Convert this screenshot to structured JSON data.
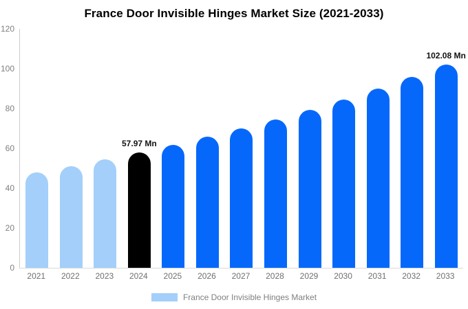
{
  "chart_data": {
    "type": "bar",
    "title": "France Door Invisible Hinges Market Size (2021-2033)",
    "categories": [
      "2021",
      "2022",
      "2023",
      "2024",
      "2025",
      "2026",
      "2027",
      "2028",
      "2029",
      "2030",
      "2031",
      "2032",
      "2033"
    ],
    "values": [
      48.0,
      51.1,
      54.4,
      57.97,
      61.7,
      65.7,
      70.0,
      74.5,
      79.4,
      84.5,
      90.0,
      95.9,
      102.08
    ],
    "unit": "Mn",
    "xlabel": "",
    "ylabel": "",
    "ylim": [
      0,
      120
    ],
    "yticks": [
      0,
      20,
      40,
      60,
      80,
      100,
      120
    ],
    "grid": "off",
    "bar_colors": [
      "#A3CFFA",
      "#A3CFFA",
      "#A3CFFA",
      "#000000",
      "#0668FB",
      "#0668FB",
      "#0668FB",
      "#0668FB",
      "#0668FB",
      "#0668FB",
      "#0668FB",
      "#0668FB",
      "#0668FB"
    ],
    "annotations": [
      {
        "index": 3,
        "text": "57.97 Mn"
      },
      {
        "index": 12,
        "text": "102.08 Mn"
      }
    ],
    "legend": {
      "label": "France Door Invisible Hinges Market",
      "position": "bottom",
      "swatch_color": "#A3CFFA"
    },
    "colors": {
      "historical_bar": "#A3CFFA",
      "base_year_bar": "#000000",
      "forecast_bar": "#0668FB",
      "axis_line": "#cccccc",
      "tick_text": "#7f7f7f",
      "annotation_text": "#111111"
    }
  }
}
